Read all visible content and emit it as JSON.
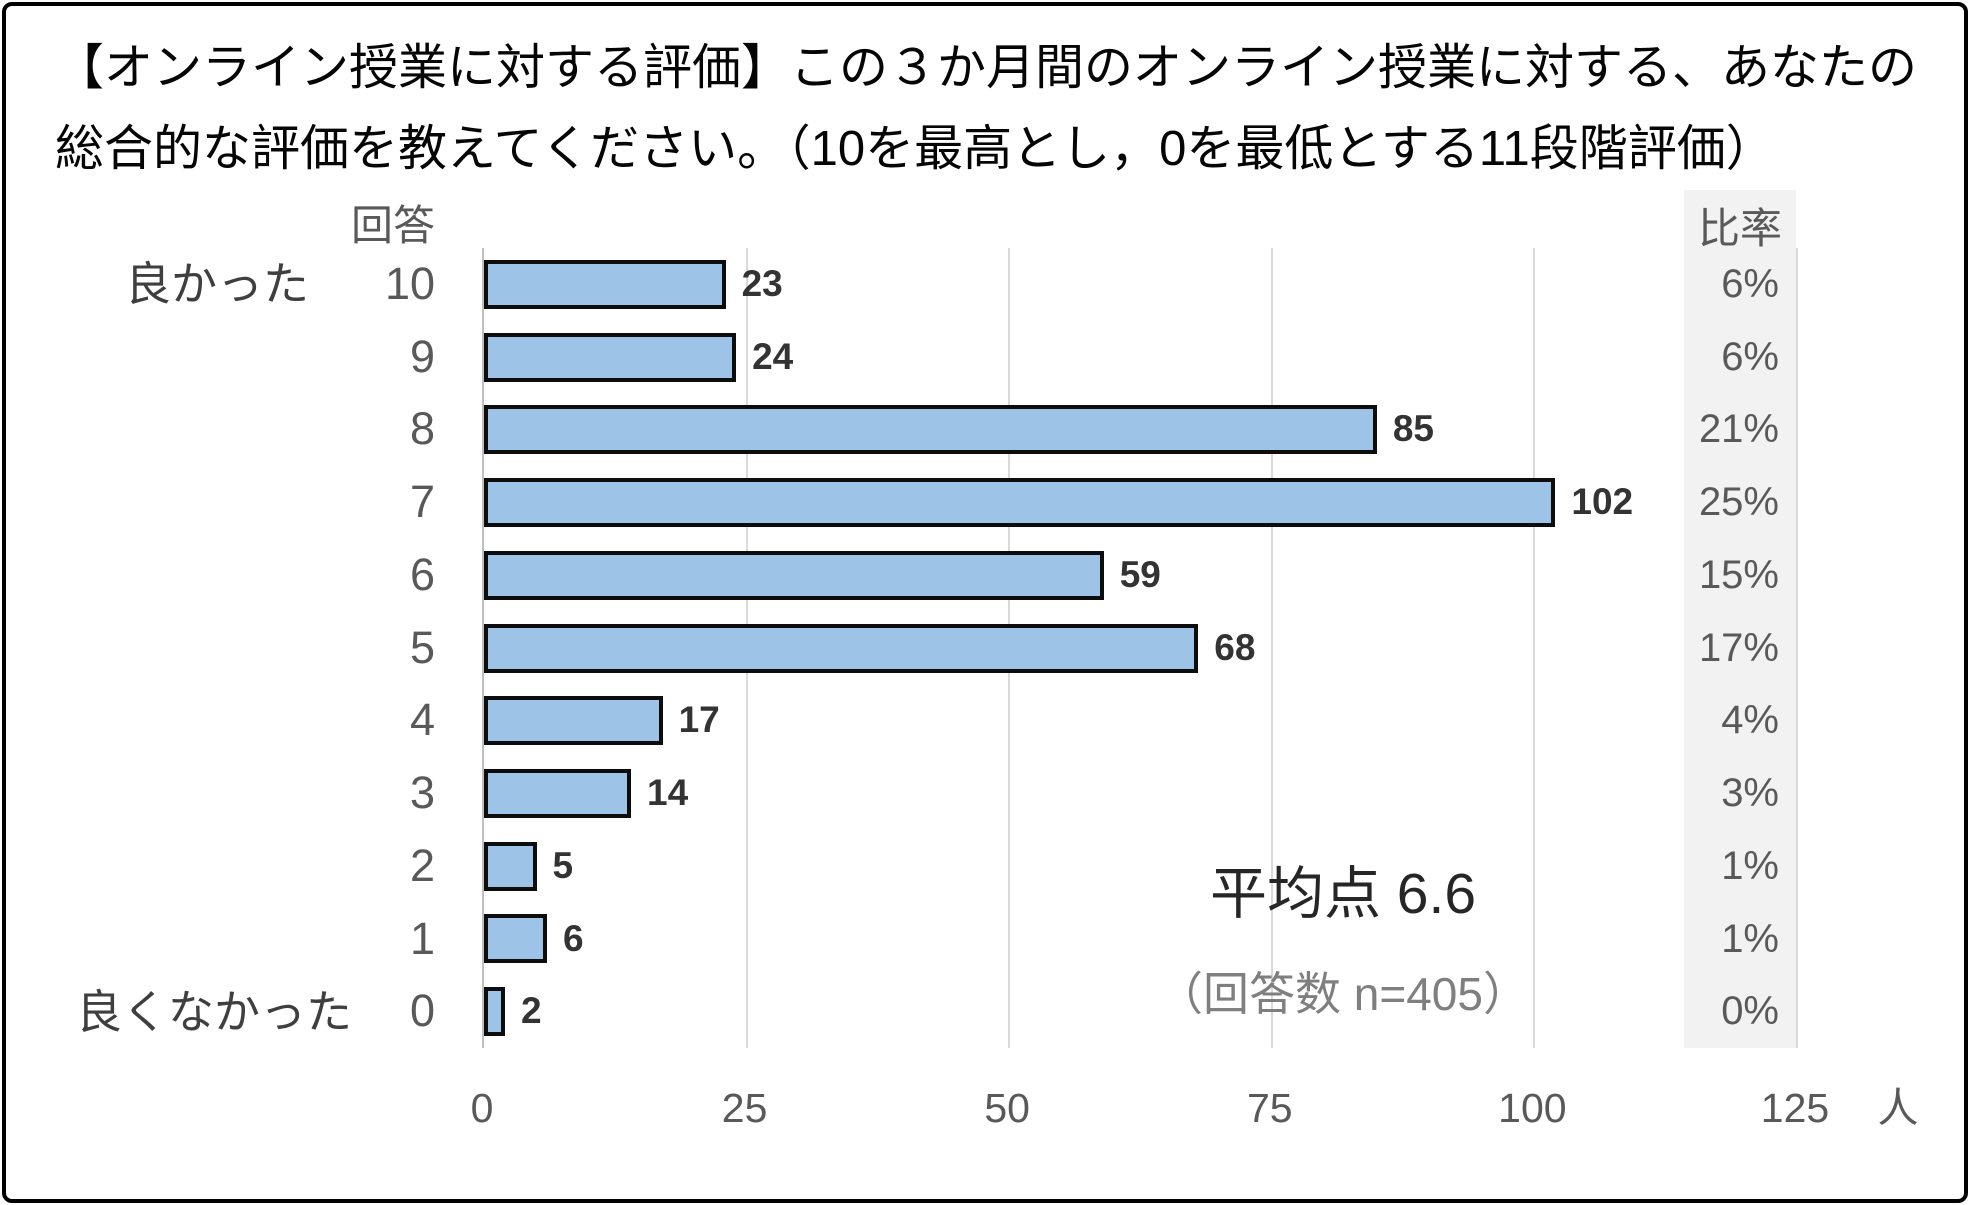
{
  "title": {
    "line1": "【オンライン授業に対する評価】この３か月間のオンライン授業に対する、あなたの",
    "line2": "総合的な評価を教えてください。（10を最高とし，0を最低とする11段階評価）"
  },
  "chart": {
    "answer_header": "回答",
    "ratio_header": "比率",
    "scale_top_label": "良かった",
    "scale_bottom_label": "良くなかった",
    "average_label": "平均点 6.6",
    "n_label": "（回答数 n=405）",
    "x_unit": "人"
  },
  "chart_data": {
    "type": "bar",
    "orientation": "horizontal",
    "title": "【オンライン授業に対する評価】この３か月間のオンライン授業に対する、あなたの総合的な評価を教えてください。（10を最高とし，0を最低とする11段階評価）",
    "categories": [
      "10",
      "9",
      "8",
      "7",
      "6",
      "5",
      "4",
      "3",
      "2",
      "1",
      "0"
    ],
    "values": [
      23,
      24,
      85,
      102,
      59,
      68,
      17,
      14,
      5,
      6,
      2
    ],
    "percent_labels": [
      "6%",
      "6%",
      "21%",
      "25%",
      "15%",
      "17%",
      "4%",
      "3%",
      "1%",
      "1%",
      "0%"
    ],
    "category_axis_header": "回答",
    "percent_column_header": "比率",
    "value_axis_unit": "人",
    "x_ticks": [
      0,
      25,
      50,
      75,
      100,
      125
    ],
    "xlim": [
      0,
      125
    ],
    "grid": true,
    "scale_top_label": "良かった",
    "scale_bottom_label": "良くなかった",
    "average": 6.6,
    "n": 405,
    "annotations": [
      "平均点 6.6",
      "（回答数 n=405）"
    ],
    "bar_color": "#9dc3e6",
    "bar_border_color": "#000000",
    "gridline_color": "#d9d9d9",
    "ratio_column_background": "#f2f2f2"
  }
}
